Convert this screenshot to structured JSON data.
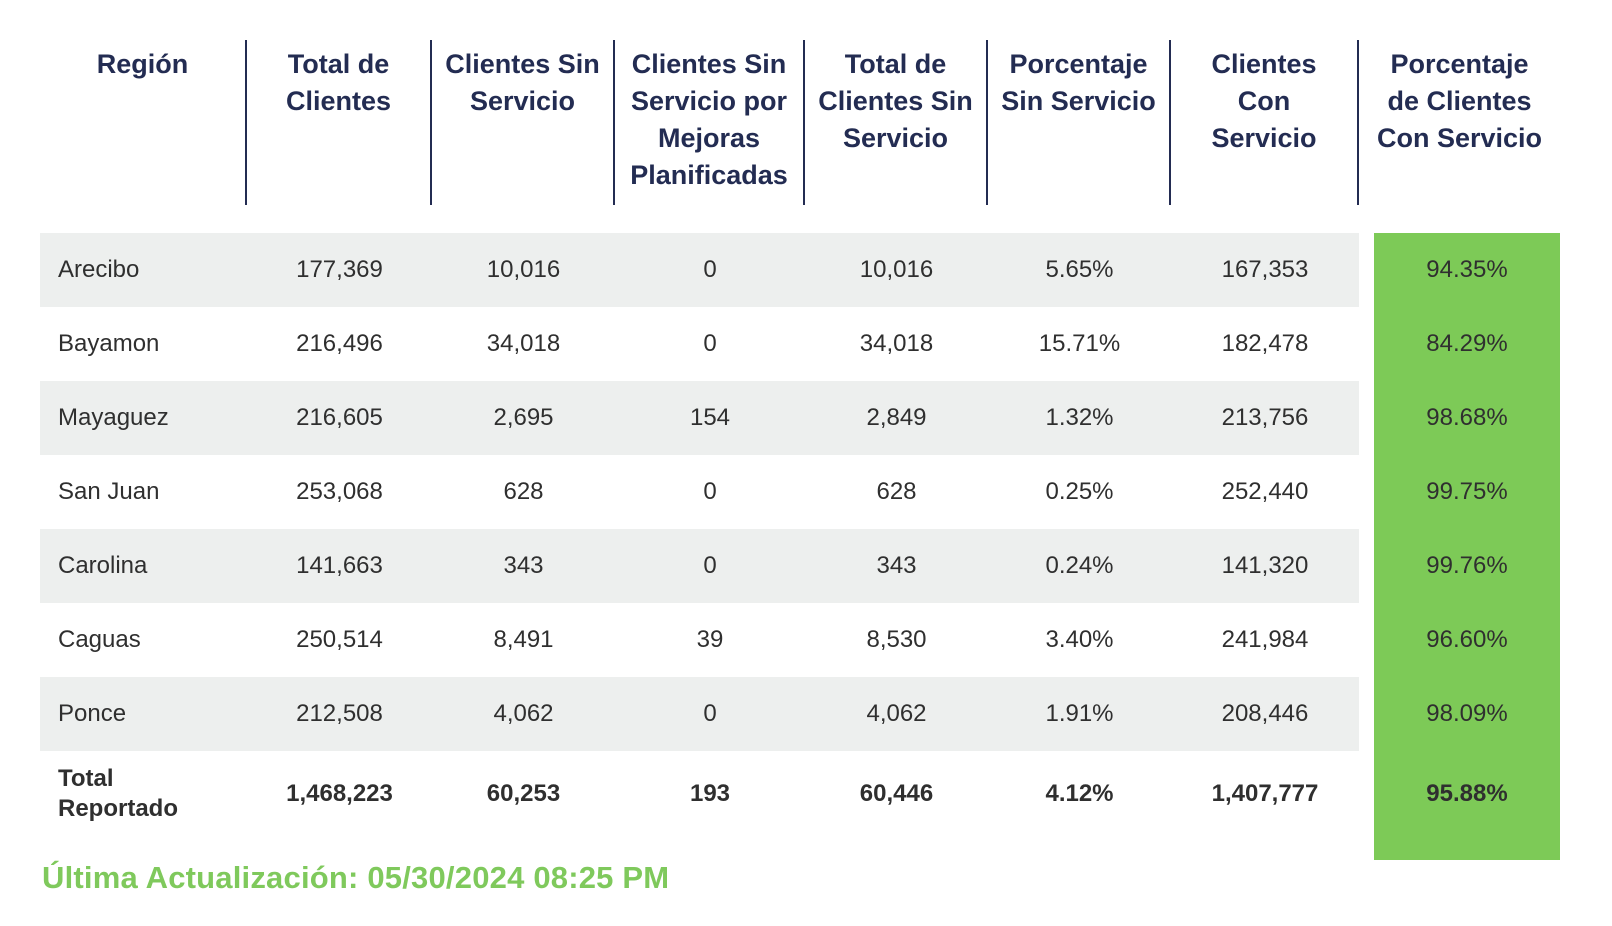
{
  "chart_data": {
    "type": "table",
    "columns": [
      "Región",
      "Total de Clientes",
      "Clientes Sin Servicio",
      "Clientes Sin Servicio por Mejoras Planificadas",
      "Total de Clientes Sin Servicio",
      "Porcentaje Sin Servicio",
      "Clientes Con Servicio",
      "Porcentaje de Clientes Con Servicio"
    ],
    "rows": [
      [
        "Arecibo",
        "177,369",
        "10,016",
        "0",
        "10,016",
        "5.65%",
        "167,353",
        "94.35%"
      ],
      [
        "Bayamon",
        "216,496",
        "34,018",
        "0",
        "34,018",
        "15.71%",
        "182,478",
        "84.29%"
      ],
      [
        "Mayaguez",
        "216,605",
        "2,695",
        "154",
        "2,849",
        "1.32%",
        "213,756",
        "98.68%"
      ],
      [
        "San Juan",
        "253,068",
        "628",
        "0",
        "628",
        "0.25%",
        "252,440",
        "99.75%"
      ],
      [
        "Carolina",
        "141,663",
        "343",
        "0",
        "343",
        "0.24%",
        "141,320",
        "99.76%"
      ],
      [
        "Caguas",
        "250,514",
        "8,491",
        "39",
        "8,530",
        "3.40%",
        "241,984",
        "96.60%"
      ],
      [
        "Ponce",
        "212,508",
        "4,062",
        "0",
        "4,062",
        "1.91%",
        "208,446",
        "98.09%"
      ]
    ],
    "total_row": [
      "Total Reportado",
      "1,468,223",
      "60,253",
      "193",
      "60,446",
      "4.12%",
      "1,407,777",
      "95.88%"
    ],
    "layout": {
      "striped_rows": [
        "Arecibo",
        "Mayaguez",
        "Carolina",
        "Ponce"
      ],
      "highlight_column": "Porcentaje de Clientes Con Servicio",
      "grid": "header vertical dividers only"
    }
  },
  "footer": {
    "last_update": "Última Actualización: 05/30/2024 08:25 PM"
  },
  "colors": {
    "header_text": "#232c52",
    "header_divider": "#232c52",
    "body_text": "#2f2f2f",
    "row_stripe": "#edefee",
    "highlight_green": "#7dca57",
    "footer_green": "#7fc95c"
  }
}
